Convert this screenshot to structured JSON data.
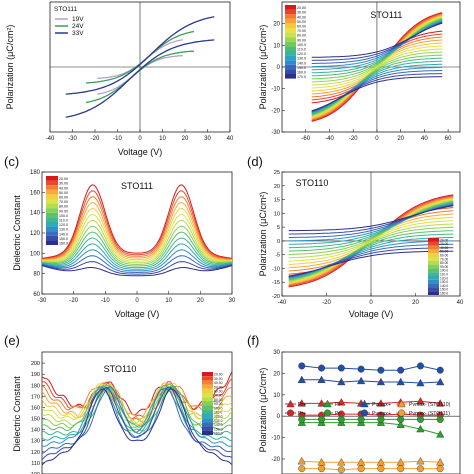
{
  "chart_data": [
    {
      "panel": "a",
      "type": "line",
      "xlabel": "Voltage (V)",
      "ylabel": "Polarization (μC/cm²)",
      "xlim": [
        -40,
        40
      ],
      "ylim": [
        -30,
        30
      ],
      "xticks": [
        "-40",
        "-30",
        "-20",
        "-10",
        "0",
        "10",
        "20",
        "30",
        "40"
      ],
      "legend_title": "STO111",
      "legend_position": "top-left",
      "series": [
        {
          "name": "19V",
          "color": "#b9a0d0",
          "vmax": 19,
          "pmax": 13,
          "pr": 4,
          "ec": 3
        },
        {
          "name": "24V",
          "color": "#3e9e5a",
          "vmax": 24,
          "pmax": 17,
          "pr": 5,
          "ec": 4
        },
        {
          "name": "33V",
          "color": "#2a3a8c",
          "vmax": 33,
          "pmax": 24,
          "pr": 6,
          "ec": 5
        }
      ]
    },
    {
      "panel": "b",
      "type": "line",
      "title": "STO111",
      "ylabel": "Polarization (μC/cm²)",
      "xlim": [
        -80,
        70
      ],
      "ylim": [
        -30,
        30
      ],
      "xticks": [
        "-60",
        "-40",
        "-20",
        "0",
        "20",
        "40",
        "60"
      ],
      "yticks": [
        "-30",
        "-20",
        "-10",
        "0",
        "10",
        "20"
      ],
      "legend_position": "top-left",
      "legend": [
        "20.00",
        "30.00",
        "40.00",
        "50.00",
        "60.00",
        "70.00",
        "80.00",
        "90.00",
        "100.0",
        "110.0",
        "120.0",
        "130.0",
        "140.0",
        "150.0",
        "160.0",
        "170.0"
      ],
      "loop": {
        "vmax": 55,
        "pmax_start": 26,
        "pmax_end": 23,
        "pr_start": 5,
        "pr_end": 14,
        "ec_start": 8,
        "ec_end": 30
      }
    },
    {
      "panel": "c",
      "type": "line",
      "title": "STO111",
      "xlabel": "Voltage (V)",
      "ylabel": "Dielectric Constant",
      "xlim": [
        -30,
        30
      ],
      "ylim": [
        60,
        180
      ],
      "xticks": [
        "-30",
        "-20",
        "-10",
        "0",
        "10",
        "20",
        "30"
      ],
      "yticks": [
        "60",
        "80",
        "100",
        "120",
        "140",
        "160",
        "180"
      ],
      "legend_position": "top-left",
      "legend": [
        "20.00",
        "30.00",
        "40.00",
        "50.00",
        "60.00",
        "70.00",
        "80.00",
        "90.00",
        "100.0",
        "110.0",
        "120.0",
        "130.0",
        "140.0",
        "150.0",
        "160.0"
      ],
      "curves": {
        "peak_v": 14,
        "peak_start": 168,
        "peak_end": 85,
        "base_start": 100,
        "base_end": 78,
        "edge_start": 95,
        "edge_end": 88
      }
    },
    {
      "panel": "d",
      "type": "line",
      "title": "STO110",
      "xlabel": "Voltage (V)",
      "ylabel": "Polarization (μC/cm²)",
      "xlim": [
        -40,
        40
      ],
      "ylim": [
        -20,
        25
      ],
      "xticks": [
        "-40",
        "-20",
        "0",
        "20",
        "40"
      ],
      "yticks": [
        "-20",
        "-15",
        "-10",
        "-5",
        "0",
        "5",
        "10",
        "15",
        "20",
        "25"
      ],
      "legend_position": "bottom-right",
      "legend": [
        "20.00",
        "30.00",
        "40.00",
        "50.00",
        "60.00",
        "70.00",
        "80.00",
        "90.00",
        "100.0",
        "110.0",
        "120.0",
        "130.0",
        "140.0",
        "150.0",
        "160.0"
      ],
      "loop": {
        "vmax": 37,
        "pmax_start": 17,
        "pmax_end": 14,
        "pr_start": 2,
        "pr_end": 9,
        "ec_start": 3,
        "ec_end": 18
      }
    },
    {
      "panel": "e",
      "type": "line",
      "title": "STO110",
      "ylabel": "Dielectric Constant",
      "xlim": [
        -30,
        30
      ],
      "ylim": [
        100,
        210
      ],
      "yticks": [
        "100",
        "110",
        "120",
        "130",
        "140",
        "150",
        "160",
        "170",
        "180",
        "190",
        "200"
      ],
      "legend_position": "top-right",
      "legend": [
        "20.00",
        "30.00",
        "40.00",
        "50.00",
        "60.00",
        "70.00",
        "80.00",
        "90.00",
        "100.0",
        "110.0",
        "120.0",
        "130.0",
        "140.0",
        "150.0",
        "160.0"
      ],
      "curves": {
        "peak_v": 10,
        "peak_start": 180,
        "peak_end": 178,
        "base_start": 150,
        "base_end": 128,
        "edge_start": 190,
        "edge_end": 108
      }
    },
    {
      "panel": "f",
      "type": "line",
      "ylabel": "Polarization (μC/cm²)",
      "xlim": [
        0,
        9
      ],
      "ylim": [
        -27,
        30
      ],
      "yticks": [
        "-20",
        "-10",
        "0",
        "10",
        "20",
        "30"
      ],
      "legend_rows": [
        [
          "Pr+",
          "Pr-",
          "Pvmax+",
          "Pvmax- (STO110)"
        ],
        [
          "Pr+",
          "Pr-",
          "Pvmax+",
          "Pvmax- (STO111)"
        ]
      ],
      "x": [
        1,
        2,
        3,
        4,
        5,
        6,
        7,
        8
      ],
      "series": [
        {
          "name": "Pvmax+ (STO111)",
          "values": [
            23.5,
            22.5,
            22.5,
            22,
            21.5,
            21.5,
            23.5,
            21.5
          ],
          "color": "#1f4fa8",
          "marker": "circle"
        },
        {
          "name": "Pvmax+ (STO110)",
          "values": [
            17,
            17,
            16,
            16.5,
            16,
            16,
            15.5,
            16
          ],
          "color": "#1f4fa8",
          "marker": "triangle"
        },
        {
          "name": "Pr+ (STO110)",
          "values": [
            6,
            6,
            6.5,
            6,
            6,
            6.5,
            7,
            6
          ],
          "color": "#d62728",
          "marker": "triangle"
        },
        {
          "name": "Pr+ (STO111)",
          "values": [
            0.5,
            0.5,
            1,
            1,
            0.5,
            1,
            0.5,
            0.5
          ],
          "color": "#d62728",
          "marker": "circle"
        },
        {
          "name": "Pr- (STO110)",
          "values": [
            -3,
            -3,
            -3,
            -3,
            -3,
            -4,
            -6,
            -8.5
          ],
          "color": "#2ca02c",
          "marker": "triangle"
        },
        {
          "name": "Pr- (STO111)",
          "values": [
            -1.5,
            -1.5,
            -1.5,
            -1.5,
            -1.5,
            -1.5,
            -1.5,
            -1.5
          ],
          "color": "#2ca02c",
          "marker": "circle"
        },
        {
          "name": "Pvmax- (STO110)",
          "values": [
            -21,
            -21.5,
            -21.5,
            -21.5,
            -21.5,
            -21.5,
            -21,
            -21.5
          ],
          "color": "#f0a030",
          "marker": "triangle"
        },
        {
          "name": "Pvmax- (STO111)",
          "values": [
            -24.5,
            -24.5,
            -25,
            -24.5,
            -24.5,
            -24.5,
            -24.5,
            -24.5
          ],
          "color": "#f0a030",
          "marker": "circle"
        }
      ]
    }
  ],
  "panel_labels": {
    "c": "(c)",
    "d": "(d)",
    "e": "(e)",
    "f": "(f)"
  },
  "palette": [
    "#d7191c",
    "#e8442c",
    "#f07a31",
    "#f8a13a",
    "#f6c73f",
    "#e7e247",
    "#c9e24a",
    "#9cd651",
    "#6fca5c",
    "#4dbb74",
    "#3ab49b",
    "#2aa7bf",
    "#2f8bc9",
    "#3a67bd",
    "#3a49a6",
    "#2b2f8a"
  ]
}
